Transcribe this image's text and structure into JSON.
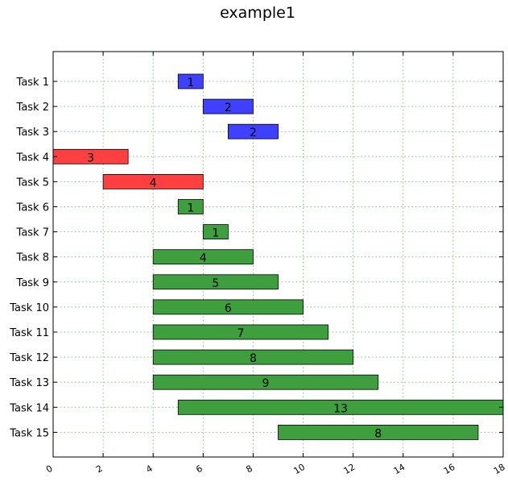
{
  "chart_data": {
    "type": "bar",
    "orientation": "horizontal",
    "title": "example1",
    "xlabel": "",
    "ylabel": "",
    "xlim": [
      0,
      18
    ],
    "xticks": [
      0,
      2,
      4,
      6,
      8,
      10,
      12,
      14,
      16,
      18
    ],
    "grid": true,
    "colors": {
      "blue": "#4040ff",
      "red": "#ff4040",
      "green": "#3f9f3f",
      "grid": "#7fbf7f"
    },
    "tasks": [
      {
        "label": "Task 1",
        "start": 5,
        "duration": 1,
        "value_label": "1",
        "color": "blue"
      },
      {
        "label": "Task 2",
        "start": 6,
        "duration": 2,
        "value_label": "2",
        "color": "blue"
      },
      {
        "label": "Task 3",
        "start": 7,
        "duration": 2,
        "value_label": "2",
        "color": "blue"
      },
      {
        "label": "Task 4",
        "start": 0,
        "duration": 3,
        "value_label": "3",
        "color": "red"
      },
      {
        "label": "Task 5",
        "start": 2,
        "duration": 4,
        "value_label": "4",
        "color": "red"
      },
      {
        "label": "Task 6",
        "start": 5,
        "duration": 1,
        "value_label": "1",
        "color": "green"
      },
      {
        "label": "Task 7",
        "start": 6,
        "duration": 1,
        "value_label": "1",
        "color": "green"
      },
      {
        "label": "Task 8",
        "start": 4,
        "duration": 4,
        "value_label": "4",
        "color": "green"
      },
      {
        "label": "Task 9",
        "start": 4,
        "duration": 5,
        "value_label": "5",
        "color": "green"
      },
      {
        "label": "Task 10",
        "start": 4,
        "duration": 6,
        "value_label": "6",
        "color": "green"
      },
      {
        "label": "Task 11",
        "start": 4,
        "duration": 7,
        "value_label": "7",
        "color": "green"
      },
      {
        "label": "Task 12",
        "start": 4,
        "duration": 8,
        "value_label": "8",
        "color": "green"
      },
      {
        "label": "Task 13",
        "start": 4,
        "duration": 9,
        "value_label": "9",
        "color": "green"
      },
      {
        "label": "Task 14",
        "start": 5,
        "duration": 13,
        "value_label": "13",
        "color": "green"
      },
      {
        "label": "Task 15",
        "start": 9,
        "duration": 8,
        "value_label": "8",
        "color": "green"
      }
    ]
  }
}
